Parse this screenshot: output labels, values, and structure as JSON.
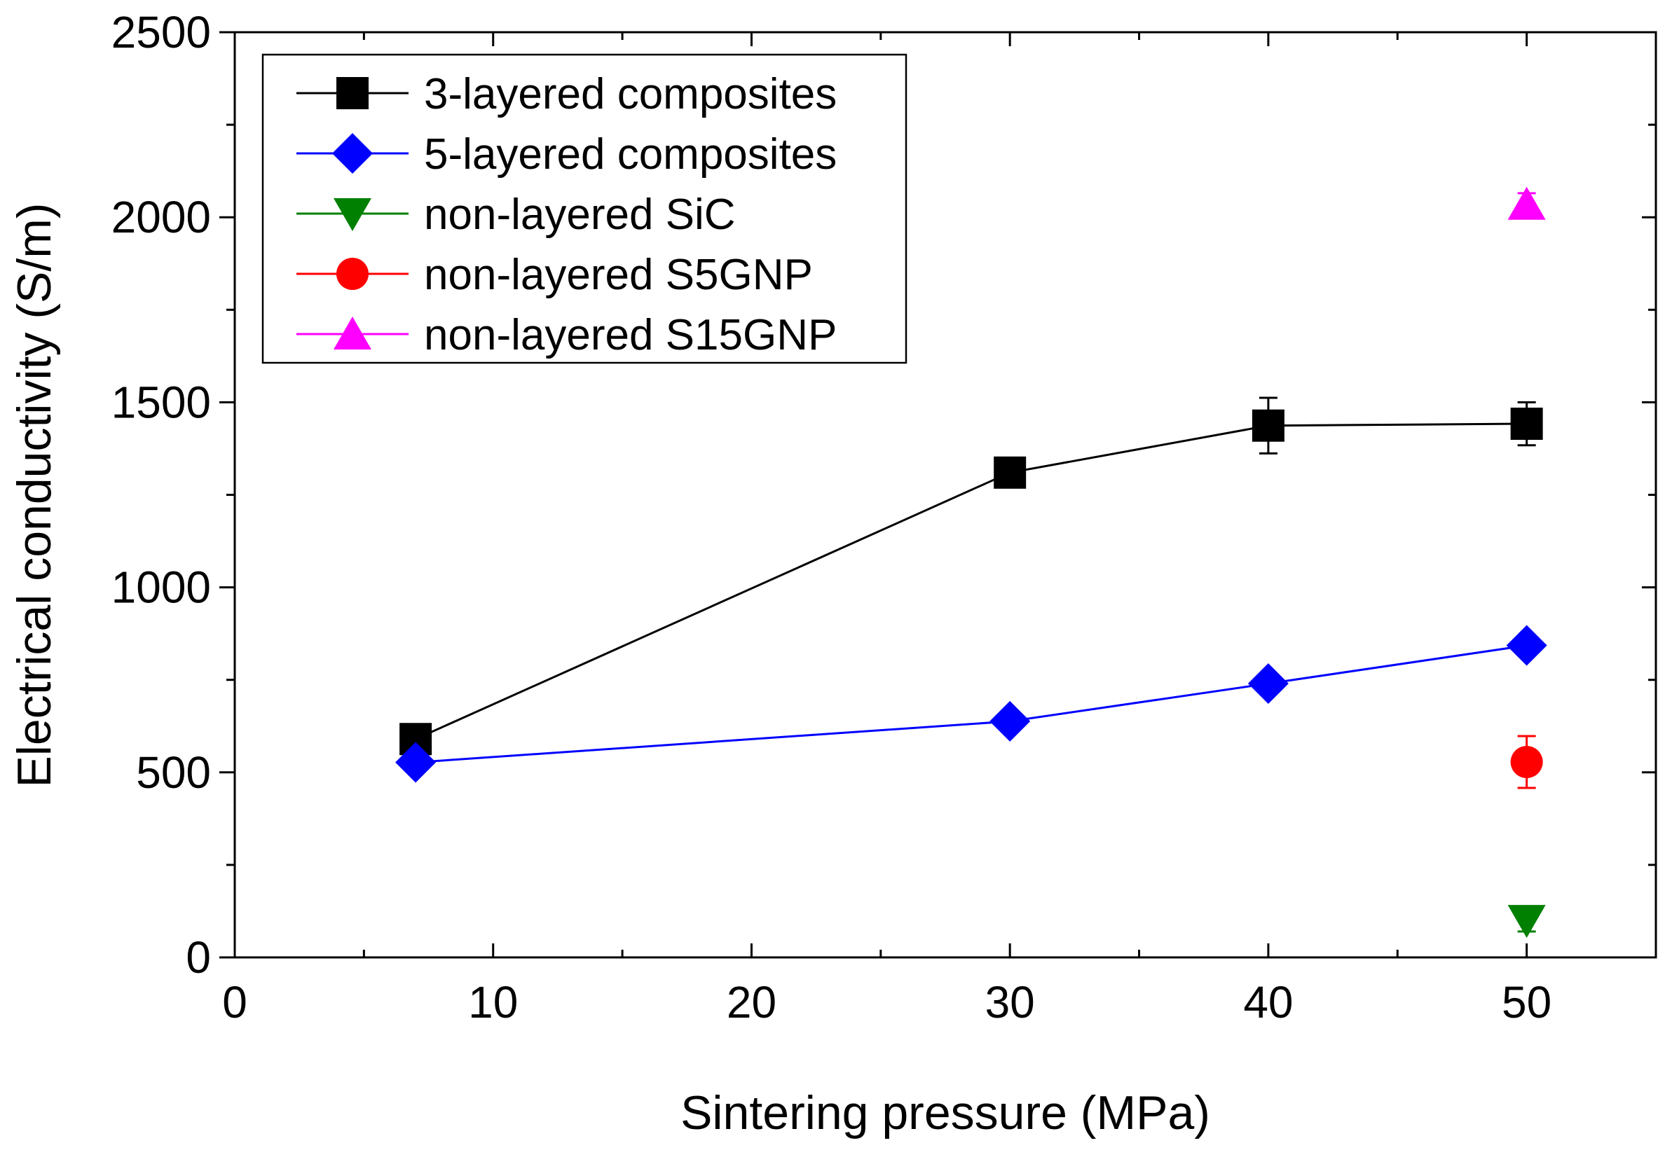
{
  "chart_data": {
    "type": "scatter",
    "xlabel": "Sintering pressure (MPa)",
    "ylabel": "Electrical conductivity (S/m)",
    "xlim": [
      0,
      55
    ],
    "ylim": [
      0,
      2500
    ],
    "xticks": [
      0,
      10,
      20,
      30,
      40,
      50
    ],
    "yticks": [
      0,
      500,
      1000,
      1500,
      2000,
      2500
    ],
    "grid": false,
    "legend_position": "top-left",
    "series": [
      {
        "name": "3-layered composites",
        "color": "#000000",
        "marker": "square",
        "connected": true,
        "x": [
          7,
          30,
          40,
          50
        ],
        "y": [
          590,
          1310,
          1437,
          1442
        ],
        "error": [
          15,
          30,
          75,
          58
        ]
      },
      {
        "name": "5-layered composites",
        "color": "#0000ff",
        "marker": "diamond",
        "connected": true,
        "x": [
          7,
          30,
          40,
          50
        ],
        "y": [
          527,
          638,
          740,
          843
        ],
        "error": [
          10,
          15,
          25,
          20
        ]
      },
      {
        "name": "non-layered SiC",
        "color": "#008000",
        "marker": "triangle-down",
        "connected": false,
        "x": [
          50
        ],
        "y": [
          100
        ],
        "error": [
          30
        ]
      },
      {
        "name": "non-layered S5GNP",
        "color": "#ff0000",
        "marker": "circle",
        "connected": false,
        "x": [
          50
        ],
        "y": [
          528
        ],
        "error": [
          70
        ]
      },
      {
        "name": "non-layered S15GNP",
        "color": "#ff00ff",
        "marker": "triangle-up",
        "connected": false,
        "x": [
          50
        ],
        "y": [
          2035
        ],
        "error": [
          30
        ]
      }
    ]
  }
}
